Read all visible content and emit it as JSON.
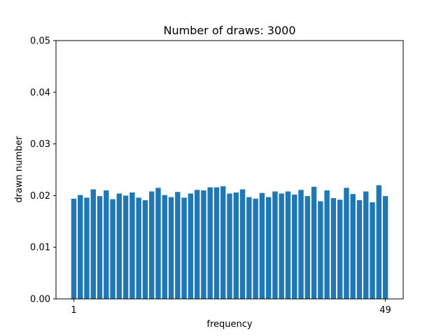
{
  "chart_data": {
    "type": "bar",
    "title": "Number of draws: 3000",
    "xlabel": "frequency",
    "ylabel": "drawn number",
    "x": [
      1,
      2,
      3,
      4,
      5,
      6,
      7,
      8,
      9,
      10,
      11,
      12,
      13,
      14,
      15,
      16,
      17,
      18,
      19,
      20,
      21,
      22,
      23,
      24,
      25,
      26,
      27,
      28,
      29,
      30,
      31,
      32,
      33,
      34,
      35,
      36,
      37,
      38,
      39,
      40,
      41,
      42,
      43,
      44,
      45,
      46,
      47,
      48,
      49
    ],
    "values": [
      0.0194,
      0.0201,
      0.0196,
      0.0212,
      0.0199,
      0.021,
      0.0193,
      0.0204,
      0.02,
      0.0206,
      0.0196,
      0.0191,
      0.0208,
      0.0215,
      0.0201,
      0.0197,
      0.0207,
      0.0196,
      0.0204,
      0.0211,
      0.021,
      0.0216,
      0.0216,
      0.0218,
      0.0204,
      0.0206,
      0.0212,
      0.0197,
      0.0194,
      0.0205,
      0.0197,
      0.0208,
      0.0204,
      0.0208,
      0.0202,
      0.0211,
      0.0199,
      0.0217,
      0.0189,
      0.021,
      0.0195,
      0.0192,
      0.0215,
      0.0203,
      0.0191,
      0.0208,
      0.0187,
      0.022,
      0.0199
    ],
    "xticks": [
      "1",
      "49"
    ],
    "yticks": [
      "0.00",
      "0.01",
      "0.02",
      "0.03",
      "0.04",
      "0.05"
    ],
    "ylim": [
      0,
      0.05
    ],
    "bar_color": "#1f77b4",
    "grid": false
  }
}
